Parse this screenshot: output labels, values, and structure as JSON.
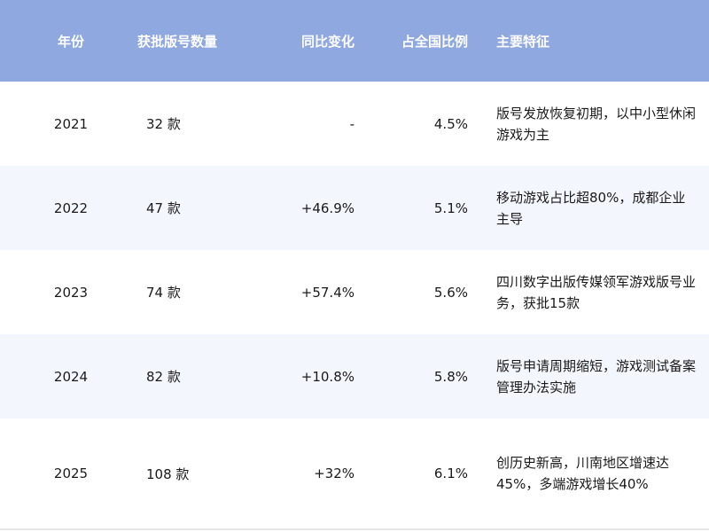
{
  "table": {
    "headers": [
      "年份",
      "获批版号数量",
      "同比变化",
      "占全国比例",
      "主要特征"
    ],
    "rows": [
      {
        "year": "2021",
        "count": "32 款",
        "yoy": "-",
        "share": "4.5%",
        "feature": "版号发放恢复初期，以中小型休闲游戏为主"
      },
      {
        "year": "2022",
        "count": "47 款",
        "yoy": "+46.9%",
        "share": "5.1%",
        "feature": "移动游戏占比超80%，成都企业主导"
      },
      {
        "year": "2023",
        "count": "74 款",
        "yoy": "+57.4%",
        "share": "5.6%",
        "feature": "四川数字出版传媒领军游戏版号业务，获批15款"
      },
      {
        "year": "2024",
        "count": "82 款",
        "yoy": "+10.8%",
        "share": "5.8%",
        "feature": "版号申请周期缩短，游戏测试备案管理办法实施"
      },
      {
        "year": "2025",
        "count": "108 款",
        "yoy": "+32%",
        "share": "6.1%",
        "feature": "创历史新高，川南地区增速达45%，多端游戏增长40%"
      }
    ]
  },
  "colors": {
    "header": "#8fa8e0",
    "alt_row": "#f3f6fc"
  }
}
